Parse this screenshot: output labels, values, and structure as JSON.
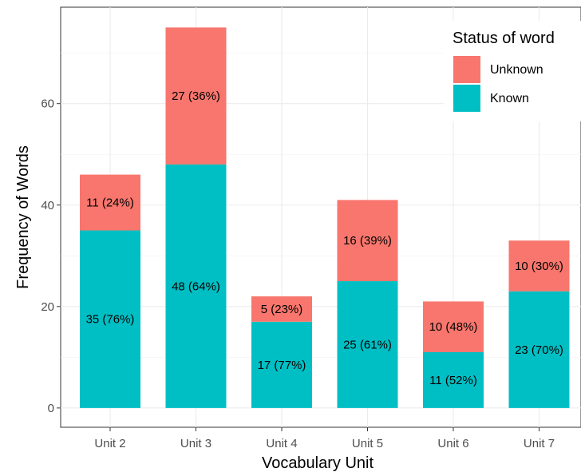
{
  "chart_data": {
    "type": "bar",
    "stacked": true,
    "categories": [
      "Unit 2",
      "Unit 3",
      "Unit 4",
      "Unit 5",
      "Unit 6",
      "Unit 7"
    ],
    "series": [
      {
        "name": "Known",
        "color": "#00BFC4",
        "values": [
          35,
          48,
          17,
          25,
          11,
          23
        ],
        "labels": [
          "35 (76%)",
          "48 (64%)",
          "17 (77%)",
          "25 (61%)",
          "11 (52%)",
          "23 (70%)"
        ]
      },
      {
        "name": "Unknown",
        "color": "#F8766D",
        "values": [
          11,
          27,
          5,
          16,
          10,
          10
        ],
        "labels": [
          "11 (24%)",
          "27 (36%)",
          "5 (23%)",
          "16 (39%)",
          "10 (48%)",
          "10 (30%)"
        ]
      }
    ],
    "xlabel": "Vocabulary Unit",
    "ylabel": "Frequency of Words",
    "ylim": [
      -3.8,
      79
    ],
    "yticks": [
      0,
      20,
      40,
      60
    ],
    "grid": true,
    "legend": {
      "title": "Status of word",
      "position": "top-right",
      "order": [
        "Unknown",
        "Known"
      ]
    }
  }
}
